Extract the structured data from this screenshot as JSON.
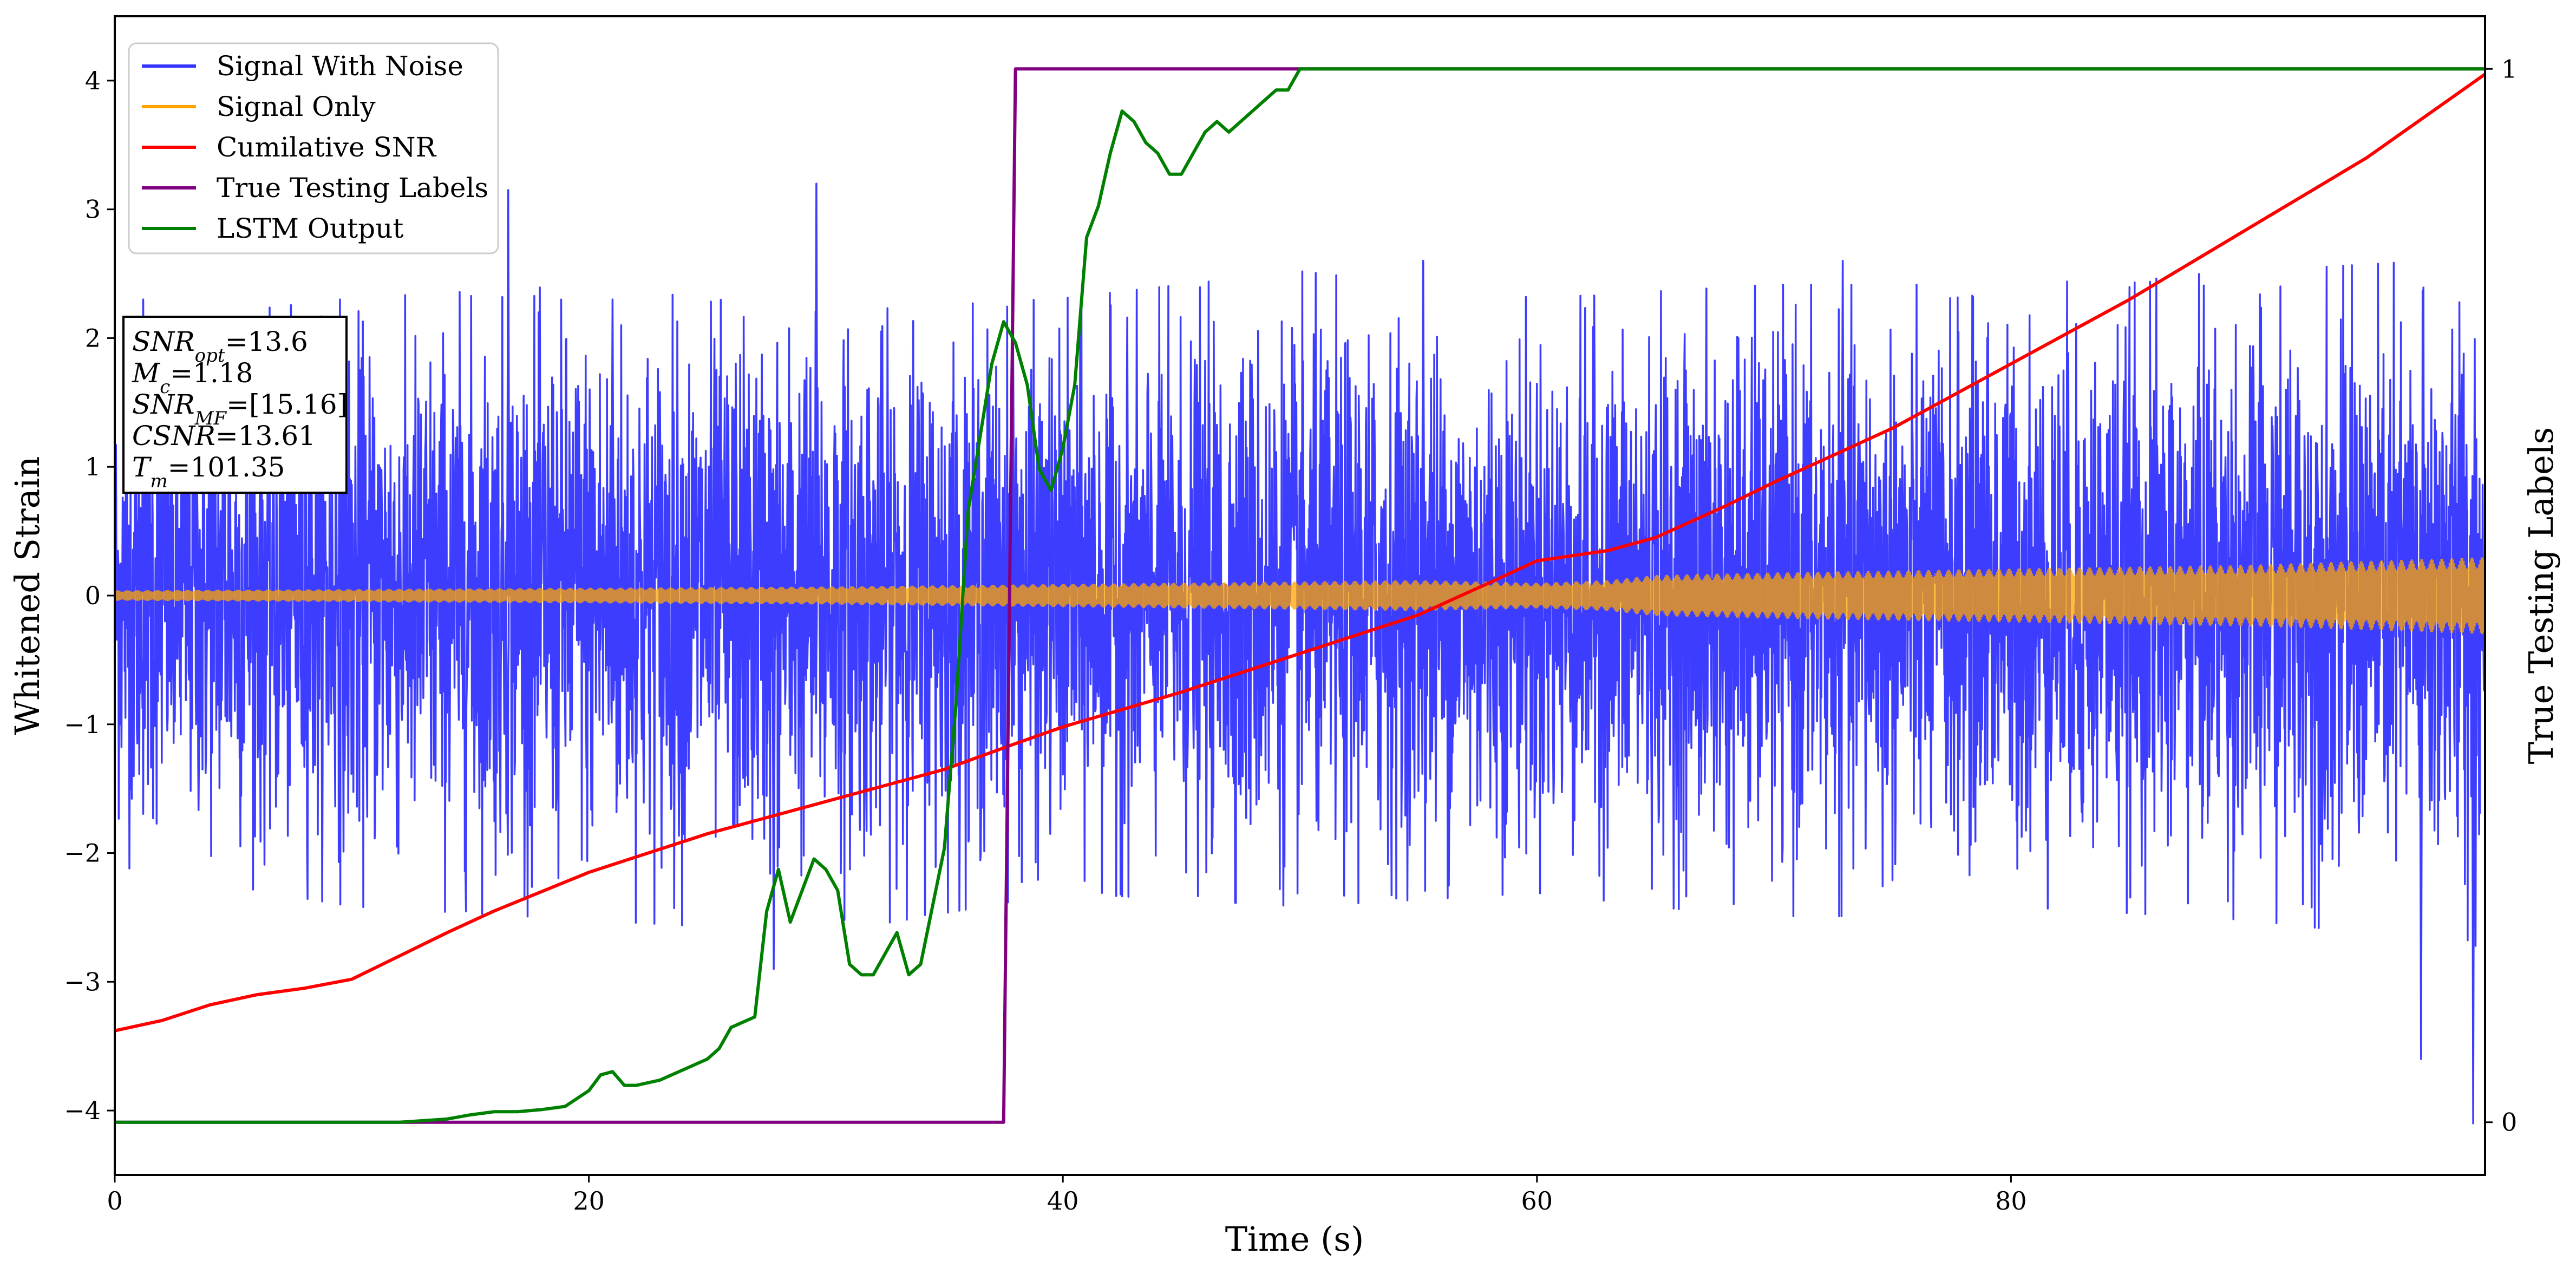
{
  "chart_data": {
    "type": "line",
    "xlabel": "Time (s)",
    "ylabel": "Whitened Strain",
    "y2label": "True Testing Labels",
    "xlim": [
      0,
      100
    ],
    "ylim": [
      -4.5,
      4.5
    ],
    "y2lim": [
      -0.05,
      1.05
    ],
    "xticks": [
      0,
      20,
      40,
      60,
      80
    ],
    "yticks": [
      -4,
      -3,
      -2,
      -1,
      0,
      1,
      2,
      3,
      4
    ],
    "y2ticks": [
      0,
      1
    ],
    "grid": false,
    "legend_position": "top-left",
    "series": [
      {
        "name": "Signal With Noise",
        "axis": "left",
        "color": "#3333ff",
        "description_of_values": "dense noisy strain oscillating roughly between -2.5 and 2.5 with spikes to about +3.2 and -4.1",
        "envelope_x": [
          0,
          10,
          20,
          30,
          40,
          50,
          60,
          70,
          80,
          90,
          100
        ],
        "envelope_upper": [
          2.0,
          2.2,
          2.3,
          2.1,
          2.2,
          2.4,
          2.2,
          2.3,
          2.3,
          2.4,
          2.5
        ],
        "envelope_lower": [
          -2.0,
          -2.3,
          -2.4,
          -2.5,
          -2.2,
          -2.3,
          -2.2,
          -2.4,
          -2.3,
          -2.4,
          -2.6
        ],
        "peak_x": [
          1.2,
          9.5,
          16.6,
          21.0,
          27.8,
          29.6,
          37.9,
          55.2,
          68.5,
          72.9,
          79.0,
          97.3,
          99.5
        ],
        "peak_y": [
          2.3,
          2.3,
          3.15,
          2.3,
          -2.9,
          3.2,
          1.95,
          2.6,
          2.0,
          2.6,
          2.0,
          -3.6,
          -4.1
        ]
      },
      {
        "name": "Signal Only",
        "axis": "left",
        "color": "#ffa500",
        "x": [
          0,
          10,
          20,
          30,
          40,
          50,
          55,
          60,
          63,
          65,
          70,
          80,
          90,
          100
        ],
        "amplitude": [
          0.04,
          0.05,
          0.06,
          0.07,
          0.09,
          0.11,
          0.12,
          0.1,
          0.12,
          0.16,
          0.18,
          0.21,
          0.24,
          0.3
        ]
      },
      {
        "name": "Cumilative SNR",
        "axis": "left",
        "color": "#ff0000",
        "x": [
          0,
          2,
          4,
          6,
          8,
          10,
          12,
          14,
          16,
          20,
          25,
          30,
          35,
          38,
          40,
          45,
          50,
          55,
          58,
          60,
          63,
          65,
          68,
          70,
          75,
          80,
          85,
          90,
          95,
          100
        ],
        "y": [
          -3.38,
          -3.3,
          -3.18,
          -3.1,
          -3.05,
          -2.98,
          -2.8,
          -2.62,
          -2.45,
          -2.15,
          -1.85,
          -1.6,
          -1.35,
          -1.15,
          -1.02,
          -0.75,
          -0.45,
          -0.15,
          0.1,
          0.27,
          0.35,
          0.45,
          0.7,
          0.88,
          1.3,
          1.8,
          2.3,
          2.85,
          3.4,
          4.05
        ]
      },
      {
        "name": "True Testing Labels",
        "axis": "right",
        "color": "#800080",
        "x": [
          0,
          37.5,
          38.0,
          100
        ],
        "y": [
          0,
          0,
          1,
          1
        ]
      },
      {
        "name": "LSTM Output",
        "axis": "right",
        "color": "#008000",
        "x": [
          0,
          12,
          14,
          15,
          16,
          17,
          18,
          19,
          20,
          20.5,
          21,
          21.5,
          22,
          23,
          24,
          25,
          25.5,
          26,
          26.5,
          27,
          27.5,
          28,
          28.5,
          29,
          29.5,
          30,
          30.5,
          31,
          31.5,
          32,
          33,
          33.5,
          34,
          35,
          35.5,
          36,
          37,
          37.5,
          38,
          38.5,
          39,
          39.5,
          40,
          40.5,
          41,
          41.5,
          42,
          42.5,
          43,
          43.5,
          44,
          44.5,
          45,
          45.5,
          46,
          46.5,
          47,
          48,
          48.5,
          49,
          49.5,
          50,
          52,
          54,
          56,
          58,
          60,
          62,
          64,
          100
        ],
        "y": [
          0,
          0,
          0.003,
          0.007,
          0.01,
          0.01,
          0.012,
          0.015,
          0.03,
          0.045,
          0.048,
          0.035,
          0.035,
          0.04,
          0.05,
          0.06,
          0.07,
          0.09,
          0.095,
          0.1,
          0.2,
          0.24,
          0.19,
          0.22,
          0.25,
          0.24,
          0.22,
          0.15,
          0.14,
          0.14,
          0.18,
          0.14,
          0.15,
          0.26,
          0.4,
          0.58,
          0.72,
          0.76,
          0.74,
          0.7,
          0.62,
          0.6,
          0.64,
          0.7,
          0.84,
          0.87,
          0.92,
          0.96,
          0.95,
          0.93,
          0.92,
          0.9,
          0.9,
          0.92,
          0.94,
          0.95,
          0.94,
          0.96,
          0.97,
          0.98,
          0.98,
          1.0,
          1.0,
          1.0,
          1.0,
          1.0,
          1.0,
          1.0,
          1.0,
          1.0
        ]
      }
    ],
    "legend": [
      {
        "label": "Signal With Noise",
        "color": "#3333ff"
      },
      {
        "label": "Signal Only",
        "color": "#ffa500"
      },
      {
        "label": "Cumilative SNR",
        "color": "#ff0000"
      },
      {
        "label": "True Testing Labels",
        "color": "#800080"
      },
      {
        "label": "LSTM Output",
        "color": "#008000"
      }
    ],
    "annotation": [
      {
        "base": "SNR",
        "sub": "opt",
        "value": "=13.6"
      },
      {
        "base": "M",
        "sub": "c",
        "value": "=1.18"
      },
      {
        "base": "SNR",
        "sub": "MF",
        "value": "=[15.16]"
      },
      {
        "base": "CSNR",
        "sub": "",
        "value": "=13.61"
      },
      {
        "base": "T",
        "sub": "m",
        "value": "=101.35"
      }
    ]
  }
}
